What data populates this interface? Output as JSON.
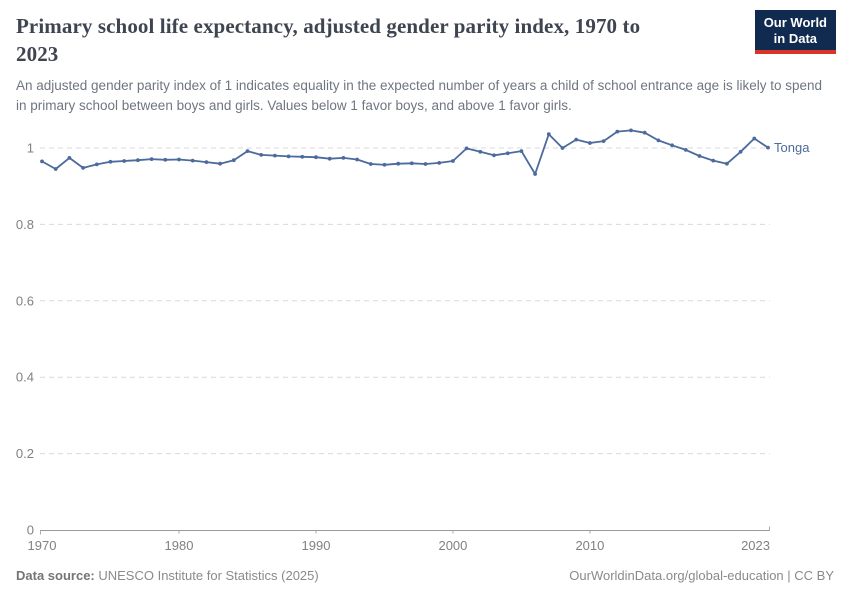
{
  "header": {
    "title_lines": [
      "Primary school life expectancy, adjusted gender parity index, 1970 to",
      "2023"
    ],
    "subtitle": "An adjusted gender parity index of 1 indicates equality in the expected number of years a child of school entrance age is likely to spend in primary school between boys and girls. Values below 1 favor boys, and above 1 favor girls.",
    "logo": {
      "line1": "Our World",
      "line2": "in Data"
    }
  },
  "chart_data": {
    "type": "line",
    "title": "Primary school life expectancy, adjusted gender parity index, 1970 to 2023",
    "xlabel": "",
    "ylabel": "",
    "xlim": [
      1970,
      2023
    ],
    "ylim": [
      0,
      1.05
    ],
    "x_ticks": [
      1970,
      1980,
      1990,
      2000,
      2010,
      2023
    ],
    "y_ticks": [
      0,
      0.2,
      0.4,
      0.6,
      0.8,
      1
    ],
    "grid": "horizontal-dashed",
    "legend": "inline-end-label",
    "series": [
      {
        "name": "Tonga",
        "color": "#4c6a9c",
        "x": [
          1970,
          1971,
          1972,
          1973,
          1974,
          1975,
          1976,
          1977,
          1978,
          1979,
          1980,
          1981,
          1982,
          1983,
          1984,
          1985,
          1986,
          1987,
          1988,
          1989,
          1990,
          1991,
          1992,
          1993,
          1994,
          1995,
          1996,
          1997,
          1998,
          1999,
          2000,
          2001,
          2002,
          2003,
          2004,
          2005,
          2006,
          2007,
          2008,
          2009,
          2010,
          2011,
          2012,
          2013,
          2014,
          2015,
          2016,
          2017,
          2018,
          2019,
          2020,
          2021,
          2022,
          2023
        ],
        "values": [
          0.965,
          0.945,
          0.974,
          0.948,
          0.957,
          0.964,
          0.966,
          0.968,
          0.971,
          0.969,
          0.97,
          0.967,
          0.963,
          0.959,
          0.968,
          0.992,
          0.982,
          0.98,
          0.978,
          0.977,
          0.976,
          0.972,
          0.974,
          0.97,
          0.958,
          0.956,
          0.959,
          0.96,
          0.958,
          0.961,
          0.966,
          0.999,
          0.99,
          0.981,
          0.986,
          0.992,
          0.932,
          1.036,
          1.0,
          1.022,
          1.013,
          1.018,
          1.043,
          1.046,
          1.04,
          1.02,
          1.007,
          0.995,
          0.979,
          0.967,
          0.959,
          0.99,
          1.025,
          1.001
        ]
      }
    ]
  },
  "footer": {
    "datasource_label": "Data source:",
    "datasource_value": " UNESCO Institute for Statistics (2025)",
    "credit": "OurWorldinData.org/global-education | CC BY"
  },
  "colors": {
    "line": "#4c6a9c",
    "title_text": "#3e4551",
    "subtitle_text": "#6e7681",
    "tick_text": "#818181",
    "gridline": "#d9d9d9",
    "axis": "#9a9a9a",
    "logo_bg": "#102a50",
    "logo_bar": "#d8352a",
    "footer_text": "#8a8a8a"
  }
}
